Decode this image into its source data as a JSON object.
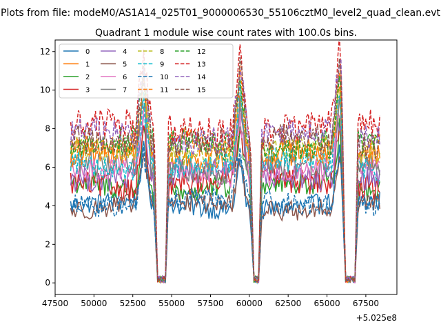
{
  "figure": {
    "suptitle": "Plots from file: modeM0/AS1A14_025T01_9000006530_55106cztM0_level2_quad_clean.evt"
  },
  "chart_data": {
    "type": "line",
    "title": "Quadrant 1 module wise count rates with 100.0s bins.",
    "xlabel": "",
    "ylabel": "",
    "x_offset_label": "+5.025e8",
    "xlim": [
      47500,
      69500
    ],
    "ylim": [
      -0.6,
      12.6
    ],
    "xticks": [
      47500,
      50000,
      52500,
      55000,
      57500,
      60000,
      62500,
      65000,
      67500
    ],
    "xtick_labels": [
      "47500",
      "50000",
      "52500",
      "55000",
      "57500",
      "60000",
      "62500",
      "65000",
      "67500"
    ],
    "yticks": [
      0,
      2,
      4,
      6,
      8,
      10,
      12
    ],
    "ytick_labels": [
      "0",
      "2",
      "4",
      "6",
      "8",
      "10",
      "12"
    ],
    "x_start": 48500,
    "bin_width": 100,
    "n_bins": 200,
    "gaps": [
      {
        "start": 54100,
        "end": 54600
      },
      {
        "start": 60300,
        "end": 60600
      },
      {
        "start": 66200,
        "end": 66800
      }
    ],
    "peaks": [
      53200,
      59400,
      65800
    ],
    "legend": {
      "location": "upper-left",
      "columns": 4
    },
    "series": [
      {
        "name": "0",
        "color": "#1f77b4",
        "dash": "solid",
        "level": 4.0,
        "noise": 0.18
      },
      {
        "name": "1",
        "color": "#ff7f0e",
        "dash": "solid",
        "level": 6.6,
        "noise": 0.25
      },
      {
        "name": "2",
        "color": "#2ca02c",
        "dash": "solid",
        "level": 5.0,
        "noise": 0.22
      },
      {
        "name": "3",
        "color": "#d62728",
        "dash": "solid",
        "level": 5.2,
        "noise": 0.22
      },
      {
        "name": "4",
        "color": "#9467bd",
        "dash": "solid",
        "level": 5.6,
        "noise": 0.22
      },
      {
        "name": "5",
        "color": "#8c564b",
        "dash": "solid",
        "level": 4.0,
        "noise": 0.18
      },
      {
        "name": "6",
        "color": "#e377c2",
        "dash": "solid",
        "level": 5.8,
        "noise": 0.22
      },
      {
        "name": "7",
        "color": "#7f7f7f",
        "dash": "solid",
        "level": 6.0,
        "noise": 0.22
      },
      {
        "name": "8",
        "color": "#bcbd22",
        "dash": "dashed",
        "level": 6.8,
        "noise": 0.22
      },
      {
        "name": "9",
        "color": "#17becf",
        "dash": "dashed",
        "level": 6.2,
        "noise": 0.22
      },
      {
        "name": "10",
        "color": "#1f77b4",
        "dash": "dashed",
        "level": 4.2,
        "noise": 0.18
      },
      {
        "name": "11",
        "color": "#ff7f0e",
        "dash": "dashed",
        "level": 7.0,
        "noise": 0.25
      },
      {
        "name": "12",
        "color": "#2ca02c",
        "dash": "dashed",
        "level": 7.2,
        "noise": 0.25
      },
      {
        "name": "13",
        "color": "#d62728",
        "dash": "dashed",
        "level": 8.0,
        "noise": 0.28
      },
      {
        "name": "14",
        "color": "#9467bd",
        "dash": "dashed",
        "level": 7.6,
        "noise": 0.25
      },
      {
        "name": "15",
        "color": "#8c564b",
        "dash": "dashed",
        "level": 7.3,
        "noise": 0.25
      }
    ]
  }
}
